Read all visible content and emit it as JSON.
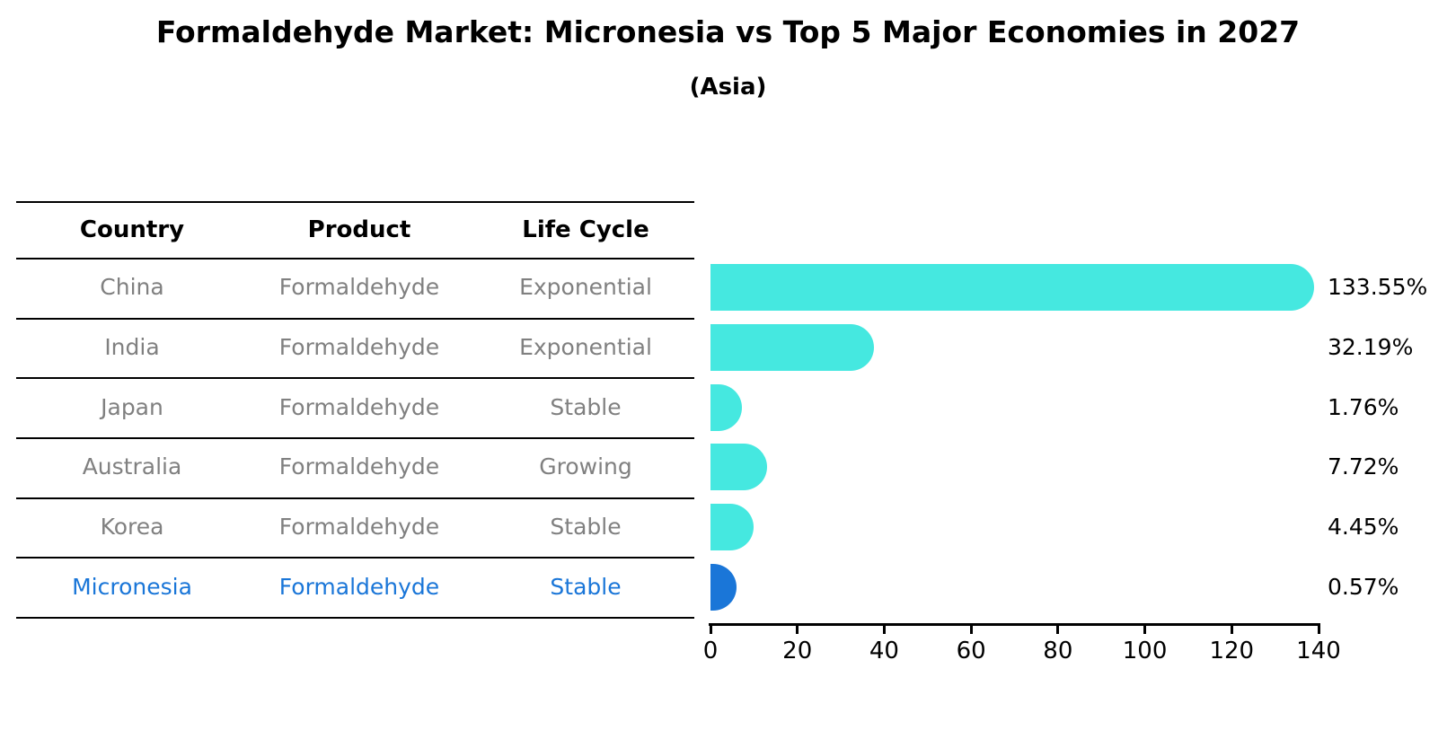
{
  "title": "Formaldehyde Market: Micronesia vs Top 5 Major Economies in 2027",
  "subtitle": "(Asia)",
  "table": {
    "headers": [
      "Country",
      "Product",
      "Life Cycle"
    ],
    "rows": [
      {
        "country": "China",
        "product": "Formaldehyde",
        "life_cycle": "Exponential",
        "highlighted": false
      },
      {
        "country": "India",
        "product": "Formaldehyde",
        "life_cycle": "Exponential",
        "highlighted": false
      },
      {
        "country": "Japan",
        "product": "Formaldehyde",
        "life_cycle": "Stable",
        "highlighted": false
      },
      {
        "country": "Australia",
        "product": "Formaldehyde",
        "life_cycle": "Growing",
        "highlighted": false
      },
      {
        "country": "Korea",
        "product": "Formaldehyde",
        "life_cycle": "Stable",
        "highlighted": false
      },
      {
        "country": "Micronesia",
        "product": "Formaldehyde",
        "life_cycle": "Stable",
        "highlighted": true
      }
    ]
  },
  "chart_data": {
    "type": "bar",
    "orientation": "horizontal",
    "title": "Formaldehyde Market: Micronesia vs Top 5 Major Economies in 2027",
    "subtitle": "(Asia)",
    "categories": [
      "China",
      "India",
      "Japan",
      "Australia",
      "Korea",
      "Micronesia"
    ],
    "values": [
      133.55,
      32.19,
      1.76,
      7.72,
      4.45,
      0.57
    ],
    "value_labels": [
      "133.55%",
      "32.19%",
      "1.76%",
      "7.72%",
      "4.45%",
      "0.57%"
    ],
    "xlabel": "",
    "ylabel": "",
    "xlim": [
      0,
      140
    ],
    "xticks": [
      0,
      20,
      40,
      60,
      80,
      100,
      120,
      140
    ],
    "grid": false,
    "legend": false,
    "bar_color": "#45e8e0",
    "highlight_color": "#1a76d8",
    "highlight_index": 5
  },
  "colors": {
    "bar_cyan": "#45e8e0",
    "bar_blue": "#1a76d8",
    "row_text": "#808080",
    "highlight_text": "#1a76d8",
    "header_text": "#000000",
    "line": "#000000"
  }
}
